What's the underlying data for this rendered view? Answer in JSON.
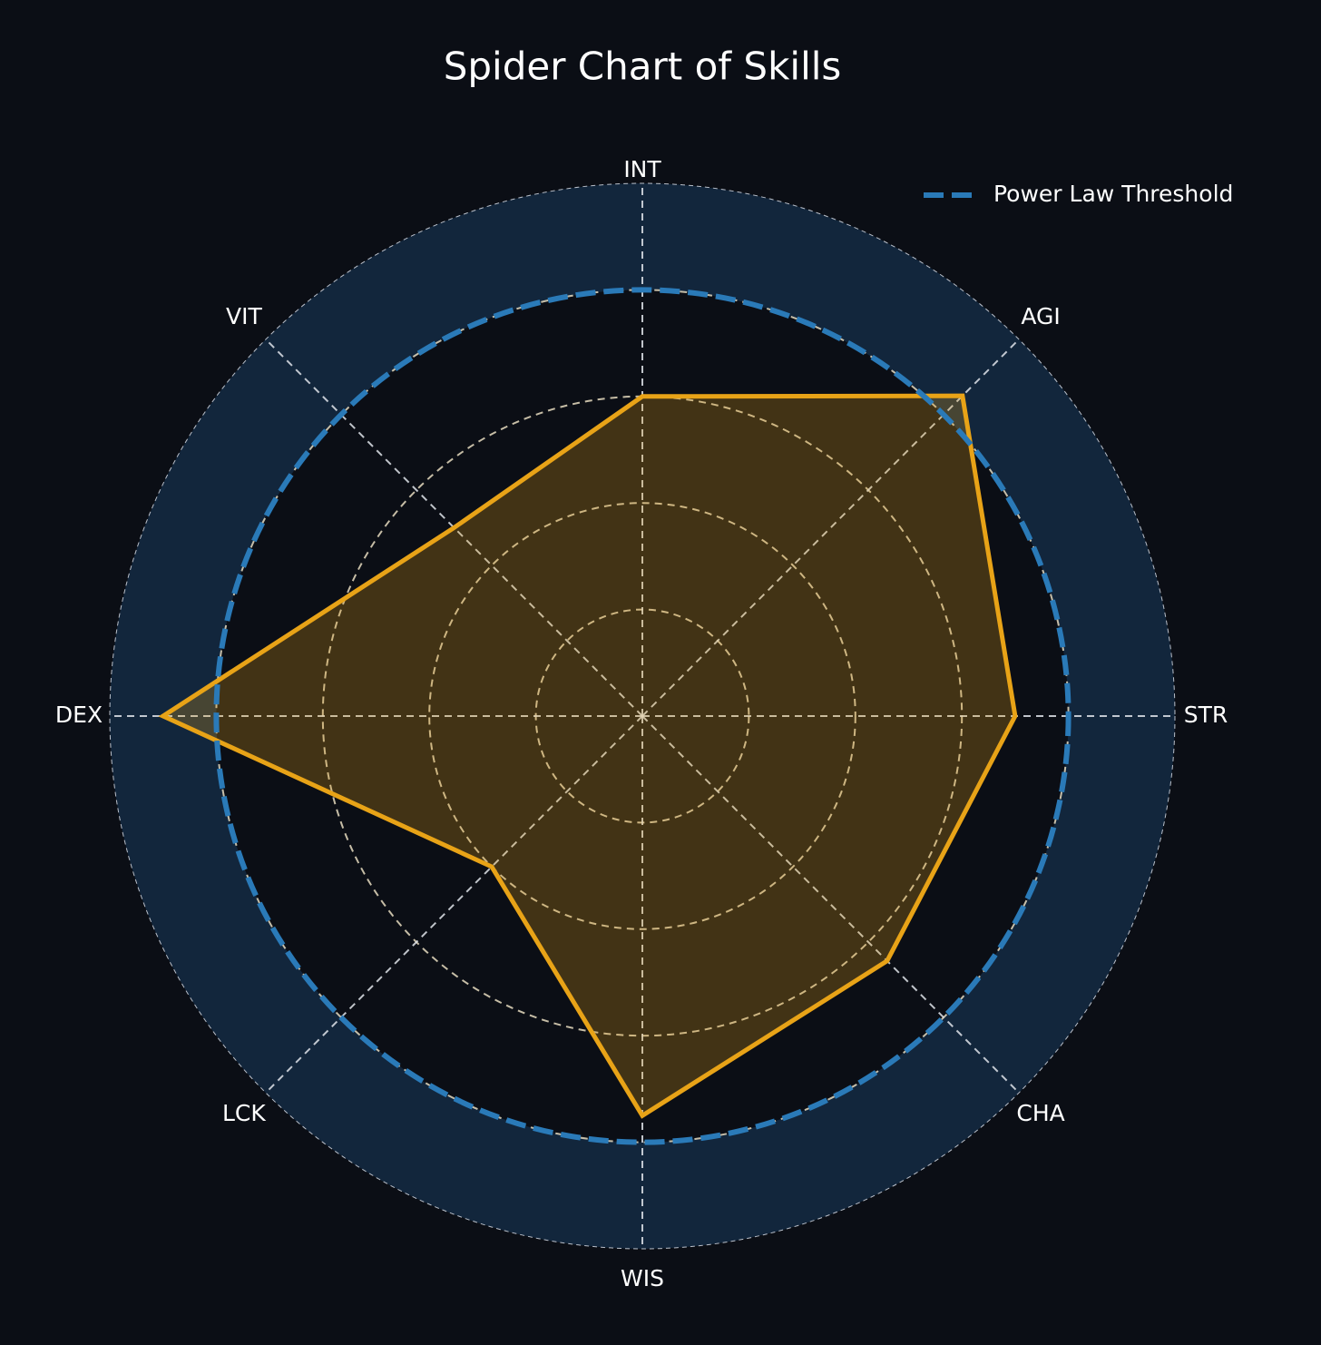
{
  "chart_data": {
    "type": "radar",
    "title": "Spider Chart of Skills",
    "categories": [
      "INT",
      "AGI",
      "STR",
      "CHA",
      "WIS",
      "LCK",
      "DEX",
      "VIT"
    ],
    "values": [
      3.0,
      4.25,
      3.5,
      3.25,
      3.75,
      2.0,
      4.5,
      2.5
    ],
    "color": "#e8a317",
    "rlim": [
      0,
      5
    ],
    "rticks": [
      1,
      2,
      3,
      4,
      5
    ],
    "grid": true,
    "threshold": {
      "name": "Power Law Threshold",
      "value": 4,
      "color": "#2a7ab8"
    },
    "legend": "upper right"
  }
}
